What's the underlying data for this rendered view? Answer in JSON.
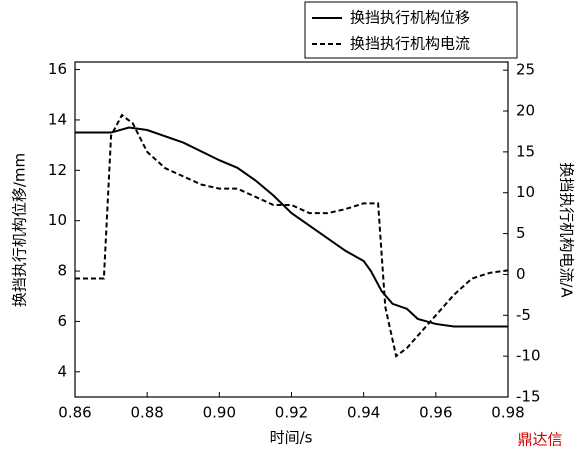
{
  "chart_data": {
    "type": "line",
    "xlabel": "时间/s",
    "ylabel": "换挡执行机构位移/mm",
    "y2label": "换挡执行机构电流/A",
    "watermark": "鼎达信",
    "xlim": [
      0.86,
      0.98
    ],
    "xticks": [
      0.86,
      0.88,
      {
        "value": 0.9,
        "label": "0.90"
      },
      0.92,
      0.94,
      0.96,
      0.98
    ],
    "ylim": [
      3,
      16.3
    ],
    "yticks": [
      4,
      6,
      8,
      10,
      12,
      14,
      16
    ],
    "y2lim": [
      -15,
      26
    ],
    "y2ticks": [
      -15,
      -10,
      -5,
      0,
      5,
      10,
      15,
      20,
      25
    ],
    "legend": "top-right",
    "series": [
      {
        "name": "换挡执行机构位移",
        "color": "#000000",
        "dash": "solid",
        "x": [
          0.86,
          0.87,
          0.875,
          0.88,
          0.89,
          0.9,
          0.905,
          0.91,
          0.915,
          0.92,
          0.93,
          0.935,
          0.94,
          0.942,
          0.945,
          0.948,
          0.952,
          0.955,
          0.96,
          0.965,
          0.98
        ],
        "values": [
          13.5,
          13.5,
          13.7,
          13.6,
          13.1,
          12.4,
          12.1,
          11.6,
          11.0,
          10.3,
          9.3,
          8.8,
          8.4,
          8.0,
          7.2,
          6.7,
          6.5,
          6.1,
          5.9,
          5.8,
          5.8
        ]
      },
      {
        "name": "换挡执行机构电流",
        "color": "#000000",
        "dash": "dashed",
        "axis": "y2",
        "x": [
          0.86,
          0.868,
          0.87,
          0.873,
          0.876,
          0.88,
          0.885,
          0.89,
          0.895,
          0.9,
          0.905,
          0.91,
          0.915,
          0.92,
          0.925,
          0.93,
          0.935,
          0.94,
          0.944,
          0.946,
          0.949,
          0.952,
          0.955,
          0.96,
          0.965,
          0.97,
          0.975,
          0.98
        ],
        "values": [
          -0.5,
          -0.5,
          17,
          19.5,
          18.5,
          15,
          13,
          12,
          11,
          10.5,
          10.5,
          9.5,
          8.5,
          8.5,
          7.5,
          7.5,
          8,
          8.7,
          8.7,
          -4,
          -10,
          -9,
          -7.5,
          -5,
          -2.5,
          -0.5,
          0.2,
          0.5
        ]
      }
    ]
  }
}
